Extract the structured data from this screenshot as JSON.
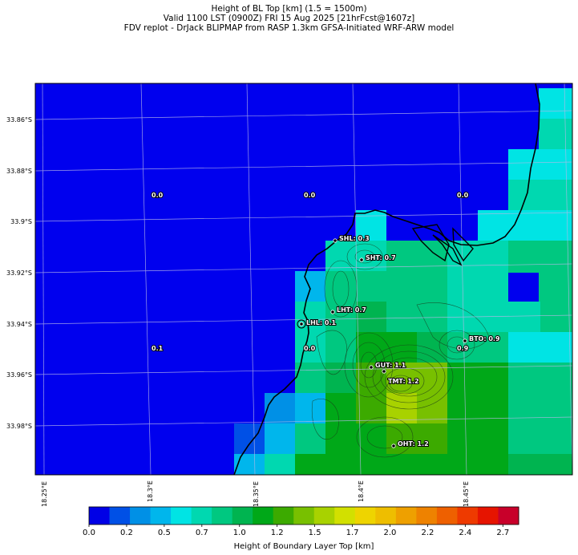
{
  "title": {
    "line1": "Height of BL Top [km] (1.5 = 1500m)",
    "line2": "Valid 1100 LST (0900Z) FRI 15 Aug 2025 [21hrFcst@1607z]",
    "line3": "FDV replot - DrJack BLIPMAP from RASP 1.3km GFSA-Initiated WRF-ARW model"
  },
  "map": {
    "lat_labels": [
      "33.86°S",
      "33.88°S",
      "33.9°S",
      "33.92°S",
      "33.94°S",
      "33.96°S",
      "33.98°S"
    ],
    "lon_labels": [
      "18.25°E",
      "18.3°E",
      "18.35°E",
      "18.4°E",
      "18.45°E"
    ],
    "ocean_color": "#0000ee",
    "grid_values": [
      {
        "text": "0.0"
      },
      {
        "text": "0.0"
      },
      {
        "text": "0.0"
      },
      {
        "text": "0.1"
      },
      {
        "text": "0.0"
      },
      {
        "text": "0.9"
      }
    ],
    "stations": [
      {
        "label": "SHL: 0.3"
      },
      {
        "label": "SHT: 0.7"
      },
      {
        "label": "LHT: 0.7"
      },
      {
        "label": "LHL: 0.1"
      },
      {
        "label": "BTO: 0.9"
      },
      {
        "label": "GUT: 1.1"
      },
      {
        "label": "TMT: 1.2"
      },
      {
        "label": "OHT: 1.2"
      }
    ]
  },
  "colorbar": {
    "title": "Height of Boundary Layer Top [km]",
    "ticks": [
      "0.0",
      "0.2",
      "0.5",
      "0.7",
      "1.0",
      "1.2",
      "1.5",
      "1.7",
      "2.0",
      "2.2",
      "2.4",
      "2.7"
    ],
    "colors": [
      "#0000e6",
      "#0050e6",
      "#0090e6",
      "#00b6ec",
      "#00e4e4",
      "#00d8b0",
      "#00c880",
      "#00b450",
      "#00a818",
      "#3caa00",
      "#78c000",
      "#a8d200",
      "#d2e000",
      "#eed400",
      "#eebe00",
      "#eea000",
      "#ee8200",
      "#ee6000",
      "#ee3a00",
      "#e61400",
      "#c8002a"
    ]
  }
}
